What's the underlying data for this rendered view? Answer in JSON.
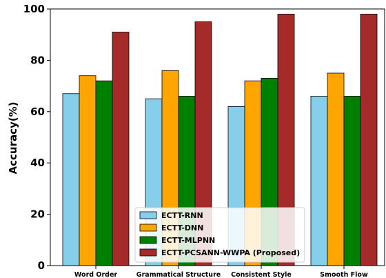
{
  "chart_data": {
    "type": "bar",
    "title": "",
    "xlabel": "",
    "ylabel": "Accuracy(%)",
    "ylim": [
      0,
      100
    ],
    "yticks": [
      0,
      20,
      40,
      60,
      80,
      100
    ],
    "grid": false,
    "legend_position": "bottom-center",
    "categories": [
      "Word Order",
      "Grammatical Structure",
      "Consistent Style",
      "Smooth Flow"
    ],
    "series": [
      {
        "name": "ECTT-RNN",
        "color": "#87ceeb",
        "values": [
          67,
          65,
          62,
          66
        ]
      },
      {
        "name": "ECTT-DNN",
        "color": "#ffa500",
        "values": [
          74,
          76,
          72,
          75
        ]
      },
      {
        "name": "ECTT-MLPNN",
        "color": "#008000",
        "values": [
          72,
          66,
          73,
          66
        ]
      },
      {
        "name": "ECTT-PCSANN-WWPA (Proposed)",
        "color": "#a52a2a",
        "values": [
          91,
          95,
          98,
          98
        ]
      }
    ]
  }
}
